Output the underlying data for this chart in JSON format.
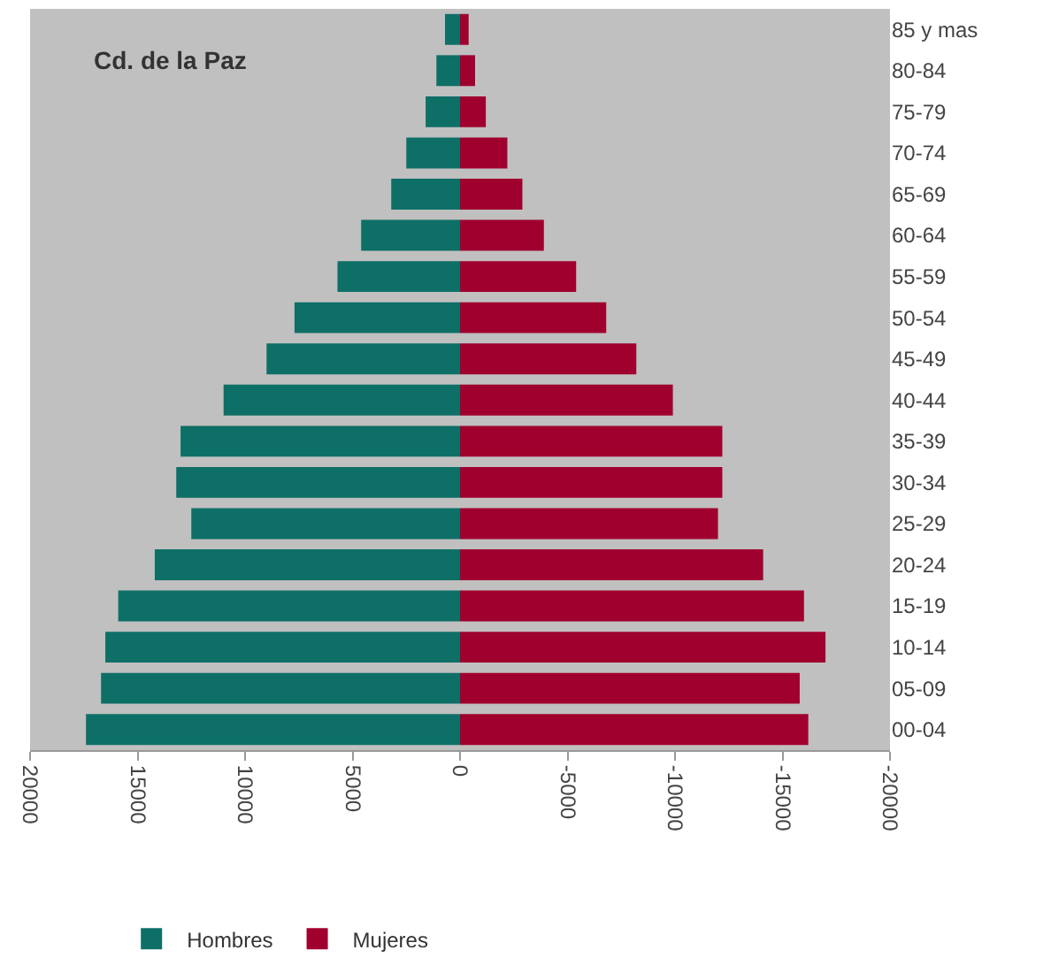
{
  "chart_data": {
    "type": "bar",
    "orientation": "horizontal",
    "title": "Cd. de la Paz",
    "categories": [
      "85 y mas",
      "80-84",
      "75-79",
      "70-74",
      "65-69",
      "60-64",
      "55-59",
      "50-54",
      "45-49",
      "40-44",
      "35-39",
      "30-34",
      "25-29",
      "20-24",
      "15-19",
      "10-14",
      "05-09",
      "00-04"
    ],
    "series": [
      {
        "name": "Hombres",
        "color": "#0e6f67",
        "values": [
          700,
          1100,
          1600,
          2500,
          3200,
          4600,
          5700,
          7700,
          9000,
          11000,
          13000,
          13200,
          12500,
          14200,
          15900,
          16500,
          16700,
          17400
        ]
      },
      {
        "name": "Mujeres",
        "color": "#a0002e",
        "values": [
          -400,
          -700,
          -1200,
          -2200,
          -2900,
          -3900,
          -5400,
          -6800,
          -8200,
          -9900,
          -12200,
          -12200,
          -12000,
          -14100,
          -16000,
          -17000,
          -15800,
          -16200
        ]
      }
    ],
    "xlim": [
      20000,
      -20000
    ],
    "xticks": [
      20000,
      15000,
      10000,
      5000,
      0,
      -5000,
      -10000,
      -15000,
      -20000
    ],
    "grid": false,
    "legend": "bottom",
    "stacked": true
  }
}
